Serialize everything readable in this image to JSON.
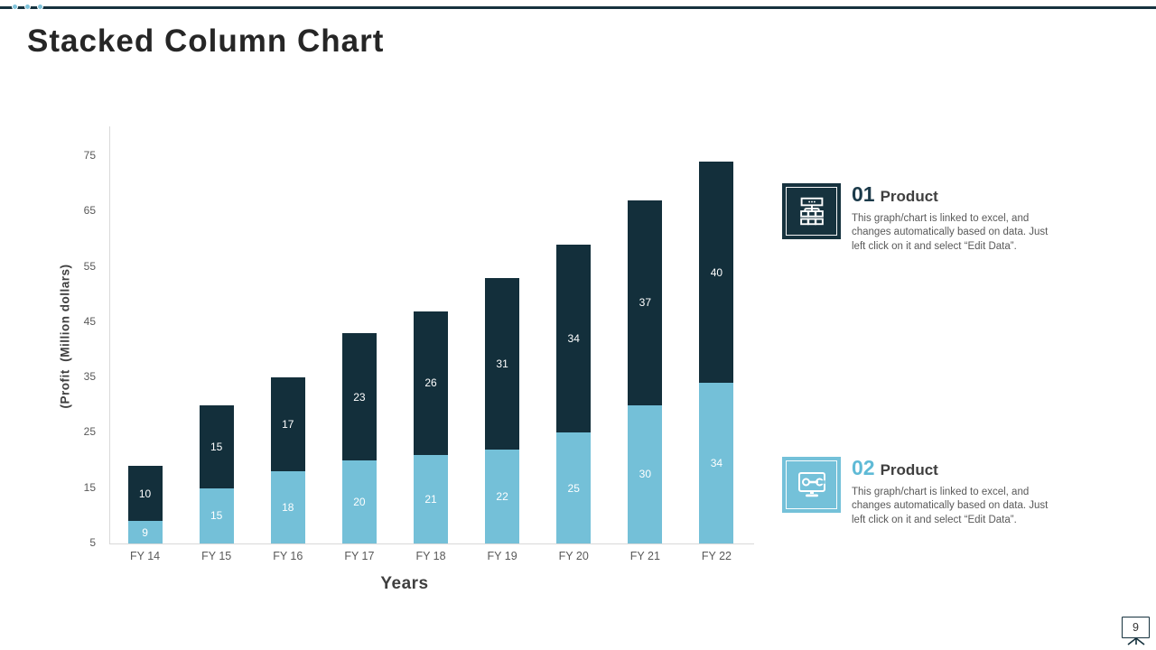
{
  "slide": {
    "title": "Stacked Column Chart",
    "page_number": "9"
  },
  "chart_data": {
    "type": "bar",
    "stacked": true,
    "categories": [
      "FY 14",
      "FY 15",
      "FY 16",
      "FY 17",
      "FY 18",
      "FY 19",
      "FY 20",
      "FY 21",
      "FY 22"
    ],
    "series": [
      {
        "name": "02 Product",
        "position": "bottom",
        "color": "#74c0d8",
        "values": [
          9,
          15,
          18,
          20,
          21,
          22,
          25,
          30,
          34
        ]
      },
      {
        "name": "01 Product",
        "position": "top",
        "color": "#132f3b",
        "values": [
          10,
          15,
          17,
          23,
          26,
          31,
          34,
          37,
          40
        ]
      }
    ],
    "xlabel": "Years",
    "ylabel": "(Profit  (Million dollars)",
    "y_ticks": [
      5,
      15,
      25,
      35,
      45,
      55,
      65,
      75
    ],
    "ylim": [
      5,
      80
    ],
    "grid": false,
    "legend": "none",
    "data_labels": "inside-center-white"
  },
  "products": [
    {
      "number": "01",
      "label": "Product",
      "description": "This graph/chart is linked to excel, and changes automatically based on data. Just left click on it and select “Edit Data”.",
      "accent": "#1b3a4a",
      "icon_bg": "#16323e",
      "icon": "org-chart-icon"
    },
    {
      "number": "02",
      "label": "Product",
      "description": "This graph/chart is linked to excel, and changes automatically based on data. Just left click on it and select “Edit Data”.",
      "accent": "#5fbad6",
      "icon_bg": "#74c1d9",
      "icon": "monitor-wrench-icon"
    }
  ],
  "colors": {
    "dark_navy": "#132f3b",
    "light_blue": "#74c0d8",
    "axis_line": "#d9d9d9",
    "tick_text": "#595959",
    "title_text": "#262626"
  }
}
